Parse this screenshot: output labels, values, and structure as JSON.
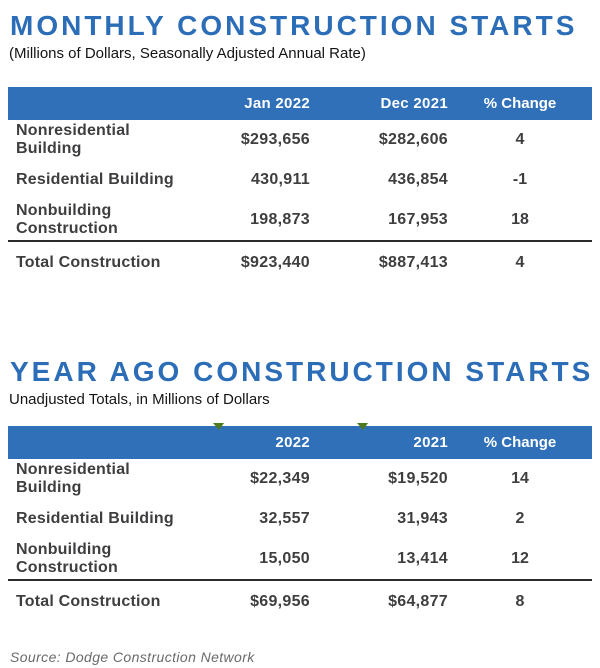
{
  "colors": {
    "header_bar_blue": "#2f70b8",
    "title_blue": "#2c6db7",
    "body_text": "#3e3e40",
    "flag_green": "#4c7a1d"
  },
  "chart_data": [
    {
      "type": "table",
      "title": "MONTHLY CONSTRUCTION STARTS",
      "subtitle": "(Millions of Dollars, Seasonally Adjusted Annual Rate)",
      "columns": [
        "Jan 2022",
        "Dec 2021",
        "% Change"
      ],
      "rows": [
        {
          "label": "Nonresidential Building",
          "current": "$293,656",
          "previous": "$282,606",
          "change": "4"
        },
        {
          "label": "Residential Building",
          "current": "430,911",
          "previous": "436,854",
          "change": "-1"
        },
        {
          "label": "Nonbuilding Construction",
          "current": "198,873",
          "previous": "167,953",
          "change": "18"
        }
      ],
      "total": {
        "label": "Total Construction",
        "current": "$923,440",
        "previous": "$887,413",
        "change": "4"
      }
    },
    {
      "type": "table",
      "title": "YEAR AGO CONSTRUCTION STARTS",
      "subtitle": "Unadjusted Totals, in Millions of Dollars",
      "columns": [
        "2022",
        "2021",
        "% Change"
      ],
      "rows": [
        {
          "label": "Nonresidential Building",
          "current": "$22,349",
          "previous": "$19,520",
          "change": "14"
        },
        {
          "label": "Residential Building",
          "current": "32,557",
          "previous": "31,943",
          "change": "2"
        },
        {
          "label": "Nonbuilding Construction",
          "current": "15,050",
          "previous": "13,414",
          "change": "12"
        }
      ],
      "total": {
        "label": "Total Construction",
        "current": "$69,956",
        "previous": "$64,877",
        "change": "8"
      }
    }
  ],
  "footer": {
    "source": "Source: Dodge Construction Network"
  }
}
